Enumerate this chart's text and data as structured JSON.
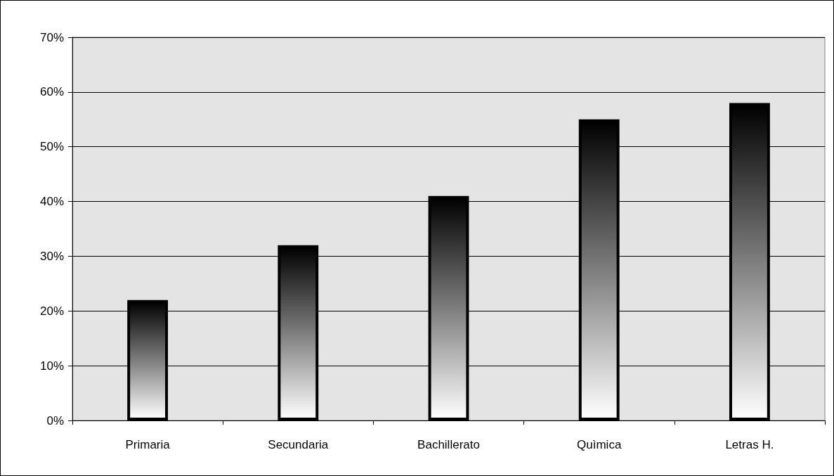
{
  "chart_data": {
    "type": "bar",
    "categories": [
      "Primaria",
      "Secundaria",
      "Bachillerato",
      "Quìmica",
      "Letras H."
    ],
    "values": [
      22,
      32,
      41,
      55,
      58
    ],
    "color": "#000000",
    "ylim": [
      0,
      70
    ],
    "yticks": [
      {
        "value": 0,
        "label": "0%"
      },
      {
        "value": 10,
        "label": "10%"
      },
      {
        "value": 20,
        "label": "20%"
      },
      {
        "value": 30,
        "label": "30%"
      },
      {
        "value": 40,
        "label": "40%"
      },
      {
        "value": 50,
        "label": "50%"
      },
      {
        "value": 60,
        "label": "60%"
      },
      {
        "value": 70,
        "label": "70%"
      }
    ],
    "grid": "y"
  }
}
